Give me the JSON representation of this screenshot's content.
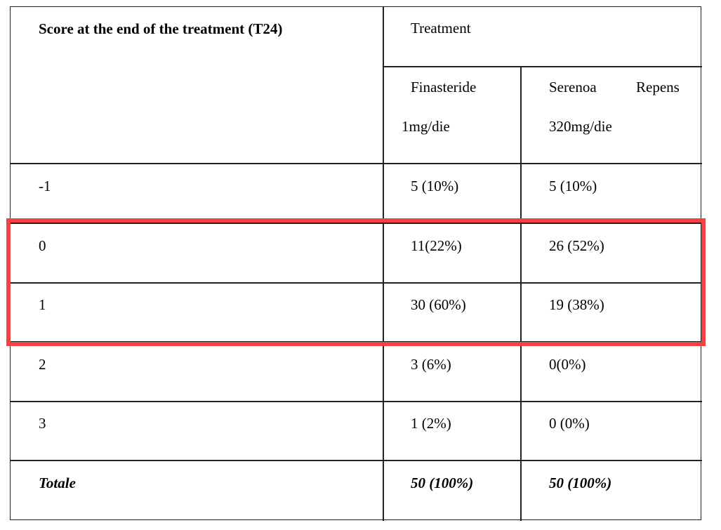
{
  "header": {
    "score_label": "Score at the end of the treatment (T24)",
    "treatment_label": "Treatment",
    "col1_line1": "Finasteride",
    "col1_line2": "1mg/die",
    "col2_line1_a": "Serenoa",
    "col2_line1_b": "Repens",
    "col2_line2": "320mg/die"
  },
  "rows": [
    {
      "score": "-1",
      "finasteride": "5 (10%)",
      "serenoa": "5 (10%)"
    },
    {
      "score": "0",
      "finasteride": "11(22%)",
      "serenoa": "26 (52%)"
    },
    {
      "score": "1",
      "finasteride": "30 (60%)",
      "serenoa": "19 (38%)"
    },
    {
      "score": "2",
      "finasteride": "3 (6%)",
      "serenoa": "0(0%)"
    },
    {
      "score": "3",
      "finasteride": "1 (2%)",
      "serenoa": "0 (0%)"
    }
  ],
  "total": {
    "label": "Totale",
    "finasteride": "50 (100%)",
    "serenoa": "50 (100%)"
  },
  "highlight": {
    "color": "#f04343"
  }
}
